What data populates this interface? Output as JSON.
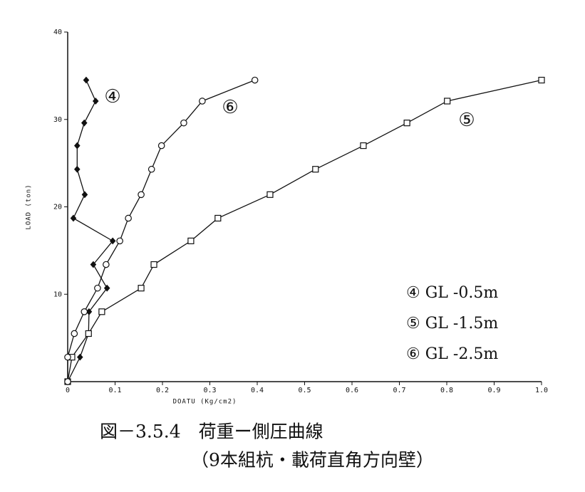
{
  "chart_data": {
    "type": "line",
    "xlabel": "DOATU (Kg/cm2)",
    "ylabel": "LOAD (ton)",
    "xlim": [
      0,
      1
    ],
    "ylim": [
      0,
      40
    ],
    "xticks": [
      0,
      0.1,
      0.2,
      0.3,
      0.4,
      0.5,
      0.6,
      0.7,
      0.8,
      0.9,
      {
        "value": 1,
        "label": "1.0"
      }
    ],
    "yticks": [
      10,
      20,
      30,
      40
    ],
    "series": [
      {
        "name": "④ GL -0.5m",
        "label": "④",
        "marker": "diamond",
        "color": "#111111",
        "x": [
          0,
          0.026,
          0.044,
          0.045,
          0.083,
          0.054,
          0.095,
          0.012,
          0.036,
          0.02,
          0.02,
          0.035,
          0.059,
          0.039
        ],
        "values": [
          0,
          2.8,
          5.5,
          8,
          10.7,
          13.4,
          16.1,
          18.7,
          21.4,
          24.3,
          27,
          29.6,
          32.1,
          34.5
        ]
      },
      {
        "name": "⑤ GL -1.5m",
        "label": "⑤",
        "marker": "square",
        "color": "#111111",
        "x": [
          0,
          0.009,
          0.044,
          0.072,
          0.155,
          0.182,
          0.26,
          0.317,
          0.427,
          0.523,
          0.624,
          0.716,
          0.801,
          1.0
        ],
        "values": [
          0,
          2.8,
          5.5,
          8,
          10.7,
          13.4,
          16.1,
          18.7,
          21.4,
          24.3,
          27,
          29.6,
          32.1,
          34.5
        ]
      },
      {
        "name": "⑥ GL -2.5m",
        "label": "⑥",
        "marker": "circle",
        "color": "#111111",
        "x": [
          0,
          0,
          0.014,
          0.035,
          0.063,
          0.081,
          0.11,
          0.128,
          0.155,
          0.177,
          0.198,
          0.245,
          0.284,
          0.395
        ],
        "values": [
          0,
          2.8,
          5.5,
          8,
          10.7,
          13.4,
          16.1,
          18.7,
          21.4,
          24.3,
          27,
          29.6,
          32.1,
          34.5
        ]
      }
    ],
    "caption": [
      "図－3.5.4　荷重ー側圧曲線",
      "（9本組杭・載荷直角方向壁）"
    ]
  }
}
